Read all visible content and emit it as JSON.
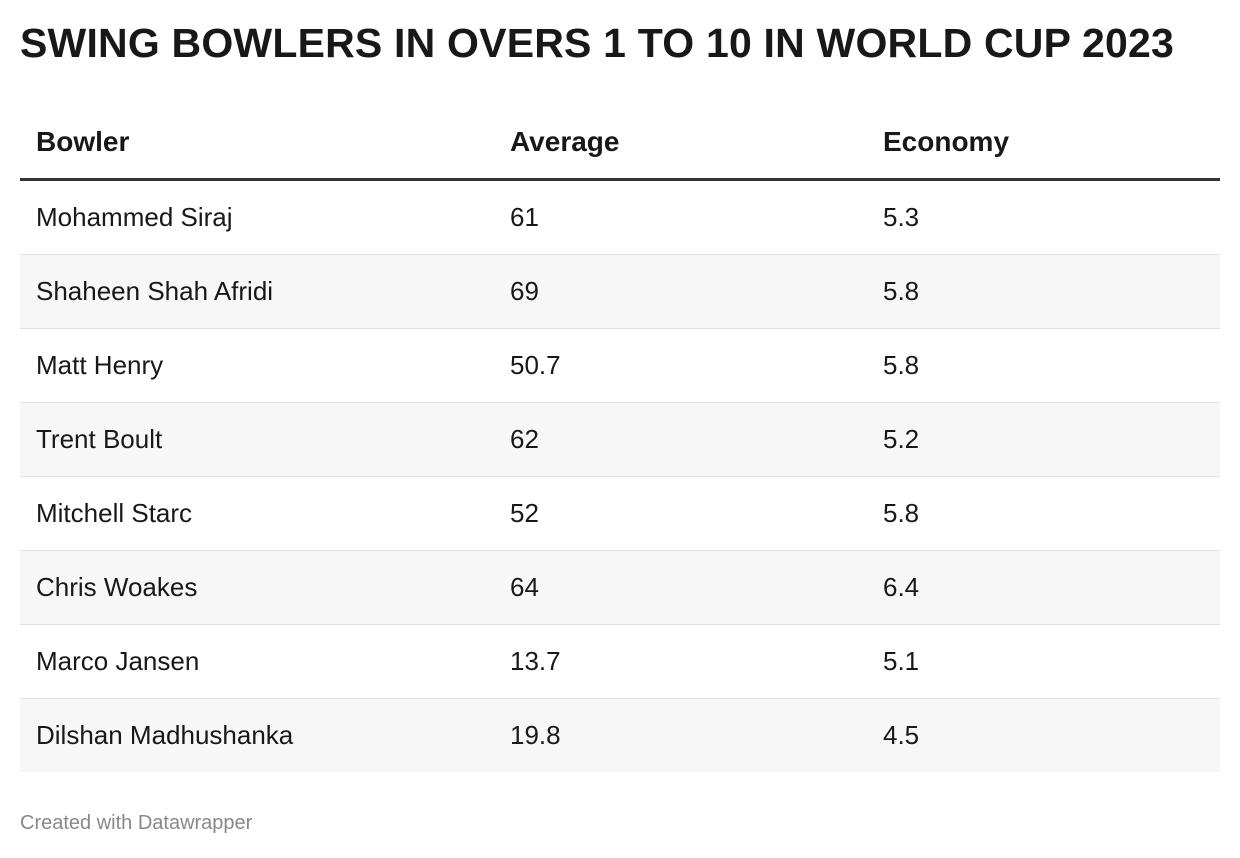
{
  "title": "SWING BOWLERS IN OVERS 1 TO 10 IN WORLD CUP 2023",
  "footer": "Created with Datawrapper",
  "chart_data": {
    "type": "table",
    "columns": [
      "Bowler",
      "Average",
      "Economy"
    ],
    "rows": [
      [
        "Mohammed Siraj",
        "61",
        "5.3"
      ],
      [
        "Shaheen Shah Afridi",
        "69",
        "5.8"
      ],
      [
        "Matt Henry",
        "50.7",
        "5.8"
      ],
      [
        "Trent Boult",
        "62",
        "5.2"
      ],
      [
        "Mitchell Starc",
        "52",
        "5.8"
      ],
      [
        "Chris Woakes",
        "64",
        "6.4"
      ],
      [
        "Marco Jansen",
        "13.7",
        "5.1"
      ],
      [
        "Dilshan Madhushanka",
        "19.8",
        "4.5"
      ]
    ]
  }
}
